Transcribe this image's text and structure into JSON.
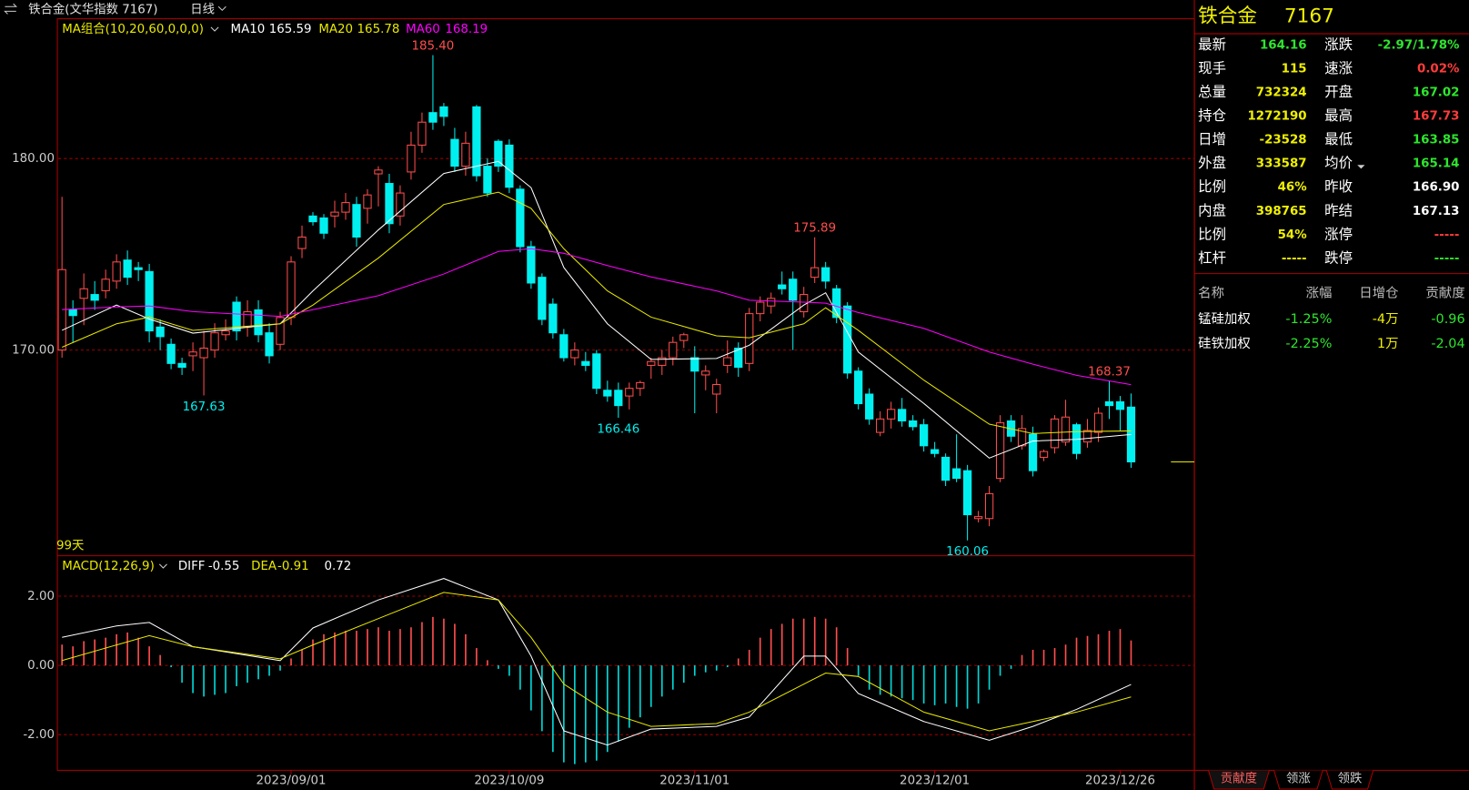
{
  "header": {
    "title": "铁合金(文华指数 7167)",
    "period": "日线"
  },
  "chart_data": [
    {
      "type": "candlestick",
      "title": "MA组合(10,20,60,0,0,0)",
      "caption": "99天",
      "xlim": [
        -0.34,
        103.8
      ],
      "ylim": [
        159.26,
        187.3
      ],
      "yticks": [
        {
          "value": 170,
          "label": "170.00"
        },
        {
          "value": 180,
          "label": "180.00"
        }
      ],
      "grid": true,
      "up_color": "#ff4d4d",
      "down_color": "#00f0f0",
      "ohlc": [
        [
          170.0,
          178.0,
          169.6,
          174.2
        ],
        [
          172.1,
          172.6,
          170.4,
          171.8
        ],
        [
          172.7,
          174.0,
          171.3,
          173.2
        ],
        [
          172.9,
          173.6,
          172.1,
          172.6
        ],
        [
          173.1,
          174.2,
          172.7,
          173.7
        ],
        [
          173.6,
          175.0,
          173.2,
          174.6
        ],
        [
          174.7,
          175.2,
          173.4,
          173.8
        ],
        [
          174.3,
          174.6,
          173.6,
          174.2
        ],
        [
          174.1,
          174.5,
          170.4,
          171.0
        ],
        [
          171.2,
          171.6,
          170.0,
          170.7
        ],
        [
          170.3,
          170.6,
          169.0,
          169.3
        ],
        [
          169.3,
          169.6,
          168.7,
          169.1
        ],
        [
          169.7,
          170.4,
          168.9,
          169.9
        ],
        [
          169.6,
          171.0,
          167.63,
          170.1
        ],
        [
          170.0,
          171.4,
          169.6,
          170.9
        ],
        [
          170.8,
          171.6,
          170.5,
          171.0
        ],
        [
          172.5,
          172.8,
          170.5,
          171.0
        ],
        [
          171.2,
          172.6,
          170.7,
          172.0
        ],
        [
          172.1,
          172.6,
          170.4,
          170.8
        ],
        [
          170.9,
          171.4,
          169.3,
          169.7
        ],
        [
          170.3,
          172.0,
          170.0,
          171.7
        ],
        [
          171.7,
          174.9,
          171.3,
          174.6
        ],
        [
          175.3,
          176.5,
          174.8,
          175.9
        ],
        [
          177.0,
          177.2,
          176.5,
          176.7
        ],
        [
          176.9,
          177.1,
          175.8,
          176.1
        ],
        [
          177.0,
          177.8,
          176.4,
          177.2
        ],
        [
          177.2,
          178.2,
          176.8,
          177.7
        ],
        [
          177.6,
          178.0,
          175.4,
          175.9
        ],
        [
          177.4,
          178.4,
          176.6,
          178.1
        ],
        [
          179.2,
          179.6,
          177.5,
          179.4
        ],
        [
          178.7,
          179.2,
          176.1,
          176.6
        ],
        [
          177.0,
          178.6,
          176.5,
          178.2
        ],
        [
          179.3,
          181.4,
          178.9,
          180.7
        ],
        [
          180.7,
          182.4,
          180.3,
          181.9
        ],
        [
          182.4,
          185.4,
          181.5,
          181.9
        ],
        [
          182.7,
          182.9,
          181.7,
          182.2
        ],
        [
          181.0,
          181.6,
          179.3,
          179.6
        ],
        [
          179.6,
          181.4,
          179.1,
          180.8
        ],
        [
          182.7,
          182.8,
          178.8,
          179.1
        ],
        [
          179.6,
          180.0,
          178.0,
          178.2
        ],
        [
          180.9,
          181.0,
          179.3,
          179.6
        ],
        [
          180.7,
          181.0,
          178.2,
          178.5
        ],
        [
          178.4,
          178.6,
          175.1,
          175.4
        ],
        [
          175.4,
          175.7,
          173.2,
          173.5
        ],
        [
          173.8,
          174.0,
          171.3,
          171.6
        ],
        [
          172.4,
          172.7,
          170.6,
          170.9
        ],
        [
          170.8,
          171.1,
          169.4,
          169.6
        ],
        [
          169.6,
          170.4,
          169.2,
          170.0
        ],
        [
          169.4,
          169.9,
          168.9,
          169.2
        ],
        [
          169.8,
          170.0,
          167.7,
          168.0
        ],
        [
          167.9,
          168.4,
          167.3,
          167.6
        ],
        [
          167.9,
          168.3,
          166.46,
          167.1
        ],
        [
          167.6,
          168.3,
          166.9,
          168.0
        ],
        [
          168.0,
          168.4,
          167.6,
          168.3
        ],
        [
          169.2,
          169.6,
          168.5,
          169.4
        ],
        [
          169.2,
          170.0,
          168.7,
          169.6
        ],
        [
          169.6,
          170.7,
          169.2,
          170.4
        ],
        [
          170.5,
          170.9,
          170.1,
          170.8
        ],
        [
          169.6,
          170.2,
          166.7,
          168.9
        ],
        [
          168.7,
          169.2,
          167.9,
          168.9
        ],
        [
          167.7,
          168.5,
          166.7,
          168.2
        ],
        [
          169.2,
          170.5,
          168.8,
          169.6
        ],
        [
          170.1,
          170.4,
          168.6,
          169.1
        ],
        [
          169.3,
          172.2,
          168.9,
          171.9
        ],
        [
          171.9,
          172.8,
          171.5,
          172.5
        ],
        [
          172.3,
          173.0,
          171.9,
          172.7
        ],
        [
          173.4,
          174.1,
          172.9,
          173.2
        ],
        [
          173.7,
          174.1,
          170.0,
          172.6
        ],
        [
          172.0,
          173.3,
          171.7,
          172.9
        ],
        [
          173.8,
          175.89,
          173.5,
          174.3
        ],
        [
          174.3,
          174.6,
          173.2,
          173.6
        ],
        [
          173.2,
          173.4,
          171.4,
          171.7
        ],
        [
          172.3,
          172.5,
          168.5,
          168.8
        ],
        [
          168.9,
          169.1,
          166.9,
          167.2
        ],
        [
          167.7,
          168.0,
          166.1,
          166.4
        ],
        [
          165.7,
          166.8,
          165.5,
          166.4
        ],
        [
          166.4,
          167.3,
          165.9,
          166.9
        ],
        [
          166.9,
          167.5,
          166.0,
          166.3
        ],
        [
          166.3,
          166.6,
          165.8,
          166.0
        ],
        [
          166.1,
          166.4,
          164.7,
          165.0
        ],
        [
          164.8,
          165.2,
          164.4,
          164.6
        ],
        [
          164.4,
          164.6,
          162.9,
          163.2
        ],
        [
          163.8,
          165.6,
          163.1,
          163.3
        ],
        [
          163.7,
          164.0,
          160.06,
          161.4
        ],
        [
          161.2,
          161.6,
          161.0,
          161.3
        ],
        [
          161.2,
          162.9,
          160.8,
          162.5
        ],
        [
          163.3,
          166.6,
          163.1,
          166.2
        ],
        [
          166.3,
          166.6,
          165.2,
          165.5
        ],
        [
          165.0,
          166.6,
          164.8,
          165.9
        ],
        [
          165.6,
          166.0,
          163.4,
          163.7
        ],
        [
          164.4,
          164.8,
          164.2,
          164.7
        ],
        [
          164.9,
          166.6,
          164.6,
          166.4
        ],
        [
          165.2,
          167.4,
          165.0,
          166.5
        ],
        [
          166.1,
          166.2,
          164.3,
          164.6
        ],
        [
          165.2,
          166.4,
          164.9,
          165.8
        ],
        [
          165.7,
          167.0,
          165.2,
          166.7
        ],
        [
          167.3,
          168.37,
          166.4,
          167.1
        ],
        [
          167.3,
          167.6,
          165.8,
          166.9
        ],
        [
          167.02,
          167.73,
          163.85,
          164.16
        ]
      ],
      "series": [
        {
          "name": "MA10",
          "color": "#ffffff",
          "x": [
            0,
            5,
            8,
            12,
            20,
            23,
            29,
            35,
            40,
            43,
            46,
            50,
            54,
            60,
            63,
            68,
            70,
            73,
            79,
            85,
            89,
            93,
            98
          ],
          "values": [
            171.03,
            172.35,
            171.62,
            170.88,
            171.37,
            173.09,
            176.27,
            179.22,
            179.85,
            178.48,
            174.31,
            171.37,
            169.51,
            169.56,
            170.25,
            172.35,
            172.99,
            169.9,
            167.21,
            164.36,
            165.25,
            165.34,
            165.59
          ]
        },
        {
          "name": "MA20",
          "color": "#e8e800",
          "x": [
            0,
            5,
            8,
            12,
            20,
            23,
            29,
            35,
            40,
            43,
            46,
            50,
            54,
            60,
            63,
            68,
            70,
            73,
            79,
            85,
            89,
            93,
            98
          ],
          "values": [
            170.15,
            171.37,
            171.72,
            171.03,
            171.37,
            172.35,
            174.8,
            177.6,
            178.24,
            177.4,
            175.29,
            173.09,
            171.72,
            170.74,
            170.64,
            171.37,
            172.21,
            171.03,
            168.43,
            166.13,
            165.64,
            165.74,
            165.78
          ]
        },
        {
          "name": "MA60",
          "color": "#ff00ff",
          "x": [
            0,
            5,
            8,
            12,
            20,
            23,
            29,
            35,
            40,
            43,
            46,
            50,
            54,
            60,
            63,
            68,
            70,
            73,
            79,
            85,
            89,
            93,
            98
          ],
          "values": [
            172.11,
            172.25,
            172.3,
            172.01,
            171.76,
            172.11,
            172.84,
            173.97,
            175.15,
            175.29,
            175.05,
            174.41,
            173.82,
            173.09,
            172.6,
            172.5,
            172.45,
            171.96,
            171.13,
            169.9,
            169.26,
            168.68,
            168.19
          ]
        }
      ],
      "annotations": [
        {
          "x": 34,
          "y": 185.4,
          "label": "185.40"
        },
        {
          "x": 13,
          "y": 167.63,
          "label": "167.63"
        },
        {
          "x": 51,
          "y": 166.46,
          "label": "166.46"
        },
        {
          "x": 69,
          "y": 175.89,
          "label": "175.89"
        },
        {
          "x": 83,
          "y": 160.06,
          "label": "160.06"
        },
        {
          "x": 96,
          "y": 168.37,
          "label": "168.37"
        }
      ]
    },
    {
      "type": "macd",
      "title": "MACD(12,26,9)",
      "xlim": [
        -0.34,
        103.8
      ],
      "ylim": [
        -3.03,
        3.14
      ],
      "yticks": [
        {
          "value": 2,
          "label": "2.00"
        },
        {
          "value": 0,
          "label": "0.00"
        },
        {
          "value": -2,
          "label": "-2.00"
        }
      ],
      "xticks": [
        {
          "value": 21,
          "label": "2023/09/01"
        },
        {
          "value": 41,
          "label": "2023/10/09"
        },
        {
          "value": 58,
          "label": "2023/11/01"
        },
        {
          "value": 80,
          "label": "2023/12/01"
        },
        {
          "value": 97,
          "label": "2023/12/26"
        }
      ],
      "grid": true,
      "up_color": "#ff4d4d",
      "down_color": "#00d8d8",
      "histogram": [
        0.6,
        0.55,
        0.7,
        0.75,
        0.8,
        0.9,
        0.95,
        0.8,
        0.55,
        0.3,
        -0.05,
        -0.5,
        -0.8,
        -0.9,
        -0.85,
        -0.8,
        -0.6,
        -0.5,
        -0.4,
        -0.3,
        -0.15,
        0.2,
        0.45,
        0.75,
        0.9,
        0.95,
        1.0,
        1.0,
        1.05,
        1.1,
        1.0,
        1.05,
        1.1,
        1.25,
        1.4,
        1.35,
        1.2,
        0.9,
        0.5,
        0.15,
        -0.1,
        -0.3,
        -0.7,
        -1.3,
        -1.9,
        -2.5,
        -2.8,
        -2.85,
        -2.8,
        -2.75,
        -2.5,
        -2.2,
        -1.8,
        -1.5,
        -1.2,
        -0.9,
        -0.7,
        -0.5,
        -0.3,
        -0.2,
        -0.15,
        -0.05,
        0.2,
        0.45,
        0.8,
        1.05,
        1.2,
        1.35,
        1.35,
        1.4,
        1.35,
        1.1,
        0.5,
        -0.3,
        -0.7,
        -0.85,
        -0.9,
        -0.95,
        -1.0,
        -1.1,
        -1.15,
        -1.1,
        -1.2,
        -1.25,
        -1.1,
        -0.7,
        -0.3,
        -0.1,
        0.3,
        0.45,
        0.45,
        0.5,
        0.6,
        0.8,
        0.85,
        0.9,
        1.0,
        1.05,
        0.72
      ],
      "series": [
        {
          "name": "DIFF",
          "color": "#ffffff",
          "x": [
            0,
            5,
            8,
            12,
            20,
            23,
            29,
            35,
            40,
            43,
            46,
            50,
            54,
            60,
            63,
            68,
            70,
            73,
            79,
            85,
            89,
            93,
            98
          ],
          "values": [
            0.81,
            1.14,
            1.24,
            0.54,
            0.14,
            1.08,
            1.89,
            2.51,
            1.89,
            0.27,
            -1.89,
            -2.3,
            -1.84,
            -1.76,
            -1.49,
            0.27,
            0.27,
            -0.81,
            -1.62,
            -2.16,
            -1.76,
            -1.27,
            -0.55
          ]
        },
        {
          "name": "DEA",
          "color": "#e8e800",
          "x": [
            0,
            5,
            8,
            12,
            20,
            23,
            29,
            35,
            40,
            43,
            46,
            50,
            54,
            60,
            63,
            68,
            70,
            73,
            79,
            85,
            89,
            93,
            98
          ],
          "values": [
            0.14,
            0.59,
            0.86,
            0.54,
            0.19,
            0.59,
            1.35,
            2.11,
            1.89,
            0.81,
            -0.54,
            -1.35,
            -1.76,
            -1.68,
            -1.35,
            -0.54,
            -0.22,
            -0.32,
            -1.35,
            -1.89,
            -1.62,
            -1.35,
            -0.91
          ]
        }
      ]
    }
  ],
  "quote": {
    "name": "铁合金",
    "code": "7167",
    "left": [
      {
        "label": "最新",
        "value": "164.16",
        "color": "green"
      },
      {
        "label": "现手",
        "value": "115",
        "color": "yellow"
      },
      {
        "label": "总量",
        "value": "732324",
        "color": "yellow"
      },
      {
        "label": "持仓",
        "value": "1272190",
        "color": "yellow"
      },
      {
        "label": "日增",
        "value": "-23528",
        "color": "yellow"
      },
      {
        "label": "外盘",
        "value": "333587",
        "color": "yellow"
      },
      {
        "label": "比例",
        "value": "46%",
        "color": "yellow"
      },
      {
        "label": "内盘",
        "value": "398765",
        "color": "yellow"
      },
      {
        "label": "比例",
        "value": "54%",
        "color": "yellow"
      },
      {
        "label": "杠杆",
        "value": "-----",
        "color": "yellow"
      }
    ],
    "right": [
      {
        "label": "涨跌",
        "value": "-2.97/1.78%",
        "color": "green"
      },
      {
        "label": "速涨",
        "value": "0.02%",
        "color": "red"
      },
      {
        "label": "开盘",
        "value": "167.02",
        "color": "green"
      },
      {
        "label": "最高",
        "value": "167.73",
        "color": "red"
      },
      {
        "label": "最低",
        "value": "163.85",
        "color": "green"
      },
      {
        "label": "均价",
        "value": "165.14",
        "color": "green"
      },
      {
        "label": "昨收",
        "value": "166.90",
        "color": "white"
      },
      {
        "label": "昨结",
        "value": "167.13",
        "color": "white"
      },
      {
        "label": "涨停",
        "value": "-----",
        "color": "red"
      },
      {
        "label": "跌停",
        "value": "-----",
        "color": "green"
      }
    ]
  },
  "contribution": {
    "headers": [
      "名称",
      "涨幅",
      "日增仓",
      "贡献度"
    ],
    "rows": [
      [
        "锰硅加权",
        "-1.25%",
        "-4万",
        "-0.96"
      ],
      [
        "硅铁加权",
        "-2.25%",
        "1万",
        "-2.04"
      ]
    ]
  },
  "tabs": [
    "贡献度",
    "领涨",
    "领跌"
  ]
}
